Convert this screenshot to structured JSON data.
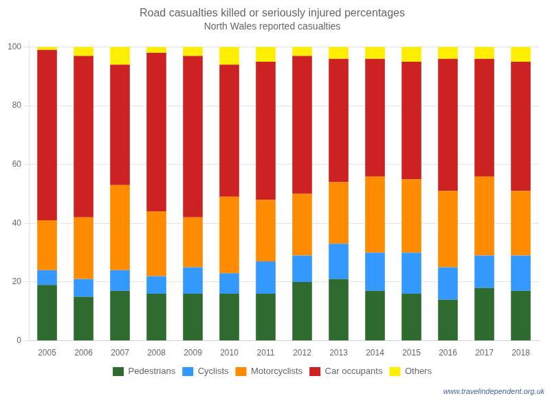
{
  "chart_data": {
    "type": "bar",
    "stacked": true,
    "title": "Road casualties killed or seriously injured percentages",
    "subtitle": "North Wales reported casualties",
    "categories": [
      "2005",
      "2006",
      "2007",
      "2008",
      "2009",
      "2010",
      "2011",
      "2012",
      "2013",
      "2014",
      "2015",
      "2016",
      "2017",
      "2018"
    ],
    "series": [
      {
        "name": "Pedestrians",
        "color": "#2e6b2e",
        "values": [
          19,
          15,
          17,
          16,
          16,
          16,
          16,
          20,
          21,
          17,
          16,
          14,
          18,
          17
        ]
      },
      {
        "name": "Cyclists",
        "color": "#3399ff",
        "values": [
          5,
          6,
          7,
          6,
          9,
          7,
          11,
          9,
          12,
          13,
          14,
          11,
          11,
          12
        ]
      },
      {
        "name": "Motorcyclists",
        "color": "#ff8c00",
        "values": [
          17,
          21,
          29,
          22,
          17,
          26,
          21,
          21,
          21,
          26,
          25,
          26,
          27,
          22
        ]
      },
      {
        "name": "Car occupants",
        "color": "#cc2222",
        "values": [
          58,
          55,
          41,
          54,
          55,
          45,
          47,
          47,
          42,
          40,
          40,
          45,
          40,
          44
        ]
      },
      {
        "name": "Others",
        "color": "#ffee00",
        "values": [
          1,
          3,
          6,
          2,
          3,
          6,
          5,
          3,
          4,
          4,
          5,
          4,
          4,
          5
        ]
      }
    ],
    "ylim": [
      0,
      102
    ],
    "yticks": [
      0,
      20,
      40,
      60,
      80,
      100
    ],
    "grid": true,
    "legend": "bottom",
    "annotations": [
      "www.travelindependent.org.uk"
    ]
  }
}
